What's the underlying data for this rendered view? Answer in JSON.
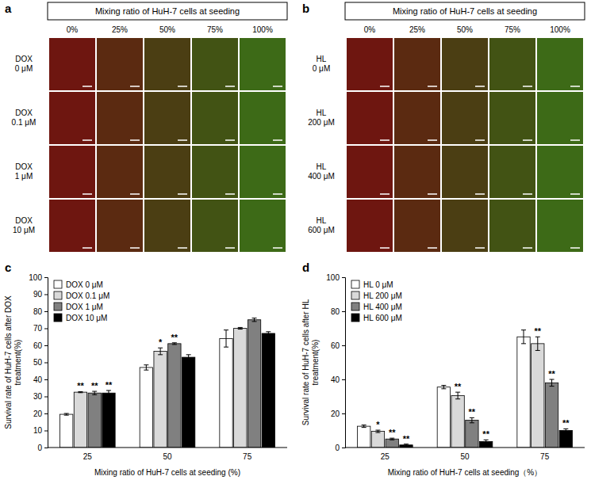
{
  "image_panels": [
    {
      "panel": "a",
      "header": "Mixing ratio of HuH-7 cells at seeding",
      "columns": [
        "0%",
        "25%",
        "50%",
        "75%",
        "100%"
      ],
      "rows": [
        "DOX 0 μM",
        "DOX 0.1 μM",
        "DOX 1 μM",
        "DOX 10 μM"
      ]
    },
    {
      "panel": "b",
      "header": "Mixing ratio of HuH-7 cells at seeding",
      "columns": [
        "0%",
        "25%",
        "50%",
        "75%",
        "100%"
      ],
      "rows": [
        "HL 0 μM",
        "HL 200 μM",
        "HL 400 μM",
        "HL 600 μM"
      ]
    }
  ],
  "chart_data": [
    {
      "panel": "c",
      "type": "bar",
      "xlabel": "Mixing ratio of HuH-7 cells at seeding (%)",
      "ylabel": "Survival rate of HuH-7 cells after DOX treatment(%)",
      "categories": [
        "25",
        "50",
        "75"
      ],
      "series": [
        {
          "name": "DOX 0 μM",
          "color": "#ffffff",
          "values": [
            19.5,
            47,
            64
          ],
          "errors": [
            0.5,
            1.5,
            5
          ]
        },
        {
          "name": "DOX 0.1 μM",
          "color": "#d9d9d9",
          "values": [
            32.5,
            56.5,
            70
          ],
          "errors": [
            0.3,
            2,
            0.5
          ],
          "significance": [
            "**",
            "*",
            null
          ]
        },
        {
          "name": "DOX 1 μM",
          "color": "#808080",
          "values": [
            32,
            61,
            75
          ],
          "errors": [
            1,
            0.5,
            1
          ],
          "significance": [
            "**",
            "**",
            null
          ]
        },
        {
          "name": "DOX 10 μM",
          "color": "#000000",
          "values": [
            32,
            53,
            67
          ],
          "errors": [
            1.5,
            1.5,
            1
          ],
          "significance": [
            "**",
            null,
            null
          ]
        }
      ],
      "ylim": [
        0,
        100
      ],
      "yticks": [
        0,
        10,
        20,
        30,
        40,
        50,
        60,
        70,
        80,
        90,
        100
      ],
      "grid": false,
      "legend": "upper left"
    },
    {
      "panel": "d",
      "type": "bar",
      "xlabel": "Mixing ratio of HuH-7 cells at seeding（%）",
      "ylabel": "Survival rate of HuH-7 cells after HL treatment(%)",
      "categories": [
        "25",
        "50",
        "75"
      ],
      "series": [
        {
          "name": "HL 0 μM",
          "color": "#ffffff",
          "values": [
            12.5,
            35.5,
            65
          ],
          "errors": [
            0.7,
            1,
            4
          ]
        },
        {
          "name": "HL 200 μM",
          "color": "#d9d9d9",
          "values": [
            9.5,
            30.5,
            61
          ],
          "errors": [
            0.7,
            2,
            4
          ],
          "significance": [
            "*",
            "**",
            "**"
          ]
        },
        {
          "name": "HL 400 μM",
          "color": "#808080",
          "values": [
            5,
            16,
            38
          ],
          "errors": [
            0.5,
            1.5,
            2
          ],
          "significance": [
            "**",
            "**",
            "**"
          ]
        },
        {
          "name": "HL 600 μM",
          "color": "#000000",
          "values": [
            1.5,
            3.5,
            10
          ],
          "errors": [
            0.5,
            1,
            1
          ],
          "significance": [
            "**",
            "**",
            "**"
          ]
        }
      ],
      "ylim": [
        0,
        100
      ],
      "yticks": [
        0,
        20,
        40,
        60,
        80,
        100
      ],
      "grid": false,
      "legend": "upper left"
    }
  ]
}
